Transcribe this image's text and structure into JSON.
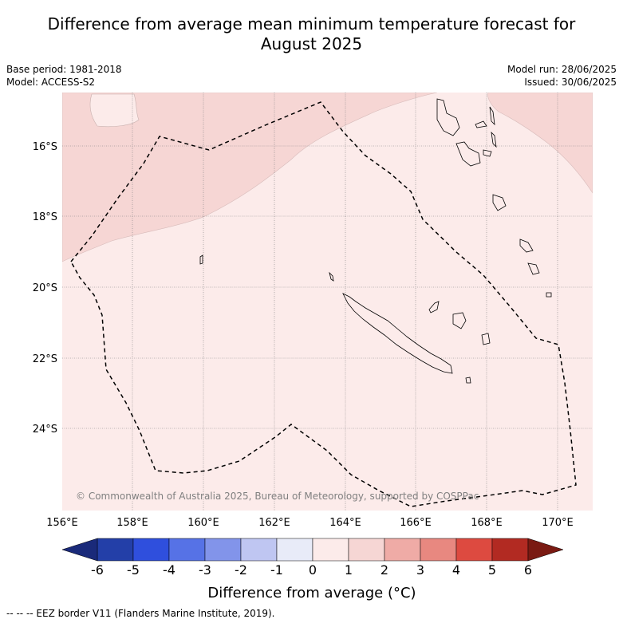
{
  "title_line1": "Difference from average mean minimum temperature forecast for",
  "title_line2": "August 2025",
  "meta_left": {
    "base_period": "Base period: 1981-2018",
    "model": "Model: ACCESS-S2"
  },
  "meta_right": {
    "model_run": "Model run: 28/06/2025",
    "issued": "Issued: 30/06/2025"
  },
  "map": {
    "lat_labels": [
      "16°S",
      "18°S",
      "20°S",
      "22°S",
      "24°S"
    ],
    "lon_labels": [
      "156°E",
      "158°E",
      "160°E",
      "162°E",
      "164°E",
      "166°E",
      "168°E",
      "170°E"
    ],
    "copyright": "© Commonwealth of Australia 2025, Bureau of Meteorology, supported by COSPPac",
    "colors": {
      "anomaly_0_1": "#fcebea",
      "anomaly_1_2": "#f6d6d4",
      "eez_line": "#000000",
      "grid": "#808080"
    }
  },
  "colorbar": {
    "labels": [
      "-6",
      "-5",
      "-4",
      "-3",
      "-2",
      "-1",
      "0",
      "1",
      "2",
      "3",
      "4",
      "5",
      "6"
    ],
    "colors": [
      "#233fa8",
      "#2f4fdd",
      "#5672e6",
      "#8294ea",
      "#bfc6f2",
      "#e8ebf8",
      "#fcebea",
      "#f6d6d4",
      "#efaba6",
      "#e88880",
      "#dd4a40",
      "#b22a22"
    ],
    "under_color": "#1a2a7a",
    "over_color": "#7a1a12",
    "title": "Difference from average (°C)"
  },
  "footer": "-- -- -- EEZ border V11 (Flanders Marine Institute, 2019)."
}
